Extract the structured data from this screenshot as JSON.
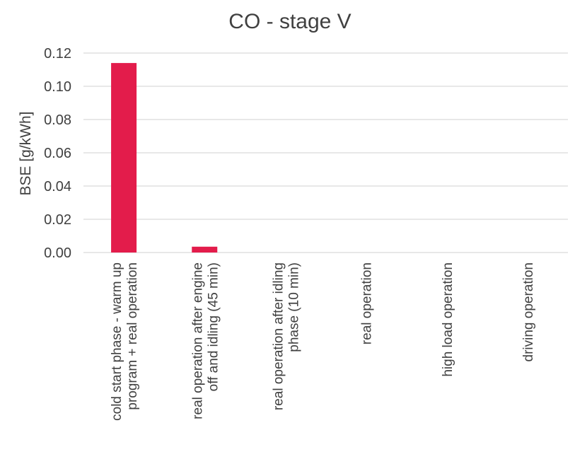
{
  "chart_data": {
    "type": "bar",
    "title": "CO - stage V",
    "xlabel": "",
    "ylabel": "BSE [g/kWh]",
    "ylim": [
      0,
      0.12
    ],
    "yticks": [
      "0.00",
      "0.02",
      "0.04",
      "0.06",
      "0.08",
      "0.10",
      "0.12"
    ],
    "grid": true,
    "categories": [
      [
        "cold start phase - warm up",
        "program + real operation"
      ],
      [
        "real operation after engine",
        "off and idling (45 min)"
      ],
      [
        "real operation after idling",
        "phase (10 min)"
      ],
      [
        "real operation"
      ],
      [
        "high load operation"
      ],
      [
        "driving operation"
      ]
    ],
    "values": [
      0.114,
      0.0035,
      0,
      0,
      0,
      0
    ],
    "bar_color": "#e31c4b",
    "grid_color": "#d9d9d9"
  }
}
